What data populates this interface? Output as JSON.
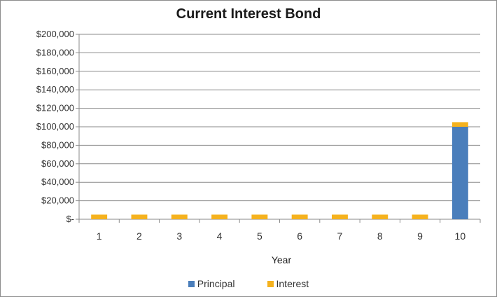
{
  "chart_data": {
    "type": "bar",
    "stacked": true,
    "title": "Current Interest Bond",
    "xlabel": "Year",
    "ylabel": "",
    "categories": [
      "1",
      "2",
      "3",
      "4",
      "5",
      "6",
      "7",
      "8",
      "9",
      "10"
    ],
    "series": [
      {
        "name": "Principal",
        "color": "#4a7ebb",
        "values": [
          0,
          0,
          0,
          0,
          0,
          0,
          0,
          0,
          0,
          100000
        ]
      },
      {
        "name": "Interest",
        "color": "#f5b21e",
        "values": [
          5000,
          5000,
          5000,
          5000,
          5000,
          5000,
          5000,
          5000,
          5000,
          5000
        ]
      }
    ],
    "ylim": [
      0,
      200000
    ],
    "ytick_labels": [
      "$-",
      "$20,000",
      "$40,000",
      "$60,000",
      "$80,000",
      "$100,000",
      "$120,000",
      "$140,000",
      "$160,000",
      "$180,000",
      "$200,000"
    ],
    "grid": true,
    "legend_position": "bottom"
  }
}
